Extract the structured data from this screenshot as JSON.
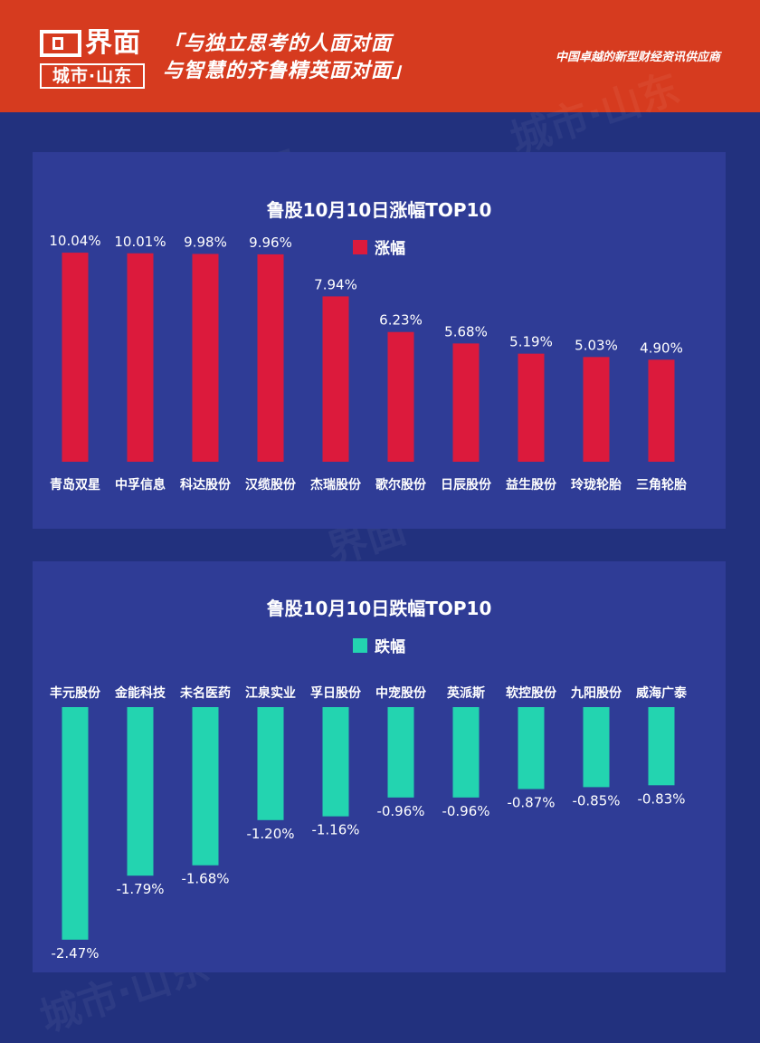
{
  "header": {
    "logo_name": "界面",
    "logo_sub": "城市·山东",
    "slogan_line1": "「与独立思考的人面对面",
    "slogan_line2": "与智慧的齐鲁精英面对面」",
    "tagline": "中国卓越的新型财经资讯供应商",
    "bg_color": "#d63b1f"
  },
  "watermark": {
    "text": "界面",
    "text2": "城市·山东"
  },
  "chart_data": [
    {
      "type": "bar",
      "title": "鲁股10月10日涨幅TOP10",
      "legend": "涨幅",
      "color": "#dc1a3c",
      "categories": [
        "青岛双星",
        "中孚信息",
        "科达股份",
        "汉缆股份",
        "杰瑞股份",
        "歌尔股份",
        "日辰股份",
        "益生股份",
        "玲珑轮胎",
        "三角轮胎"
      ],
      "values": [
        10.04,
        10.01,
        9.98,
        9.96,
        7.94,
        6.23,
        5.68,
        5.19,
        5.03,
        4.9
      ],
      "labels": [
        "10.04%",
        "10.01%",
        "9.98%",
        "9.96%",
        "7.94%",
        "6.23%",
        "5.68%",
        "5.19%",
        "5.03%",
        "4.90%"
      ]
    },
    {
      "type": "bar",
      "title": "鲁股10月10日跌幅TOP10",
      "legend": "跌幅",
      "color": "#23d4b0",
      "categories": [
        "丰元股份",
        "金能科技",
        "未名医药",
        "江泉实业",
        "孚日股份",
        "中宠股份",
        "英派斯",
        "软控股份",
        "九阳股份",
        "威海广泰"
      ],
      "values": [
        -2.47,
        -1.79,
        -1.68,
        -1.2,
        -1.16,
        -0.96,
        -0.96,
        -0.87,
        -0.85,
        -0.83
      ],
      "labels": [
        "-2.47%",
        "-1.79%",
        "-1.68%",
        "-1.20%",
        "-1.16%",
        "-0.96%",
        "-0.96%",
        "-0.87%",
        "-0.85%",
        "-0.83%"
      ]
    }
  ]
}
